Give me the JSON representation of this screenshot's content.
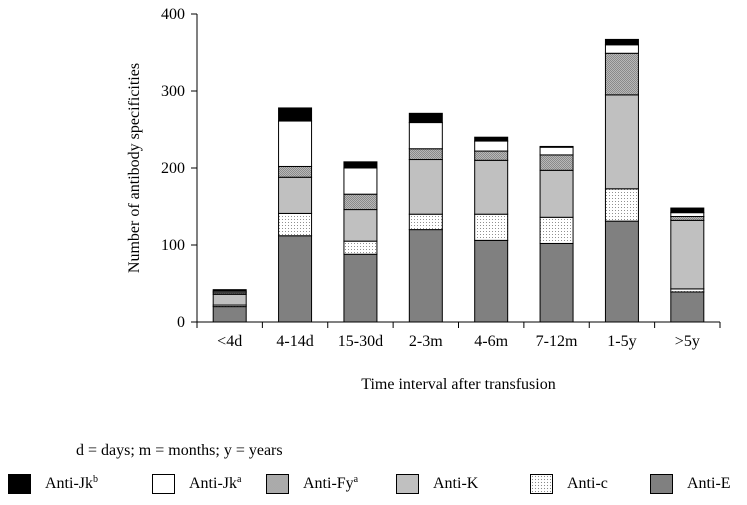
{
  "chart_data": {
    "type": "bar",
    "stacked": true,
    "ylabel": "Number of antibody specificities",
    "xlabel": "Time interval after transfusion",
    "ylim": [
      0,
      400
    ],
    "yticks": [
      "0",
      "100",
      "200",
      "300",
      "400"
    ],
    "grid": false,
    "legend_position": "bottom",
    "categories": [
      "<4d",
      "4-14d",
      "15-30d",
      "2-3m",
      "4-6m",
      "7-12m",
      "1-5y",
      ">5y"
    ],
    "series": [
      {
        "name": "Anti-E",
        "base": "Anti-E",
        "sup": "",
        "fill": "#808080",
        "values": [
          20,
          112,
          88,
          120,
          106,
          102,
          131,
          39
        ]
      },
      {
        "name": "Anti-c",
        "base": "Anti-c",
        "sup": "",
        "fill": "#f2f2f2",
        "values": [
          2,
          29,
          17,
          20,
          34,
          34,
          42,
          4
        ]
      },
      {
        "name": "Anti-K",
        "base": "Anti-K",
        "sup": "",
        "fill": "#c0c0c0",
        "values": [
          14,
          47,
          41,
          71,
          70,
          61,
          122,
          89
        ]
      },
      {
        "name": "Anti-Fya",
        "base": "Anti-Fy",
        "sup": "a",
        "fill": "#a8a8a8",
        "values": [
          2,
          14,
          20,
          14,
          12,
          20,
          54,
          5
        ]
      },
      {
        "name": "Anti-Jka",
        "base": "Anti-Jk",
        "sup": "a",
        "fill": "#ffffff",
        "values": [
          2,
          59,
          34,
          34,
          13,
          10,
          11,
          5
        ]
      },
      {
        "name": "Anti-Jkb",
        "base": "Anti-Jk",
        "sup": "b",
        "fill": "#000000",
        "values": [
          2,
          17,
          8,
          12,
          5,
          1,
          7,
          6
        ]
      }
    ]
  },
  "footnote": "d = days; m = months; y = years",
  "legend_order": [
    "Anti-Jkb",
    "Anti-Jka",
    "Anti-Fya",
    "Anti-K",
    "Anti-c",
    "Anti-E"
  ]
}
